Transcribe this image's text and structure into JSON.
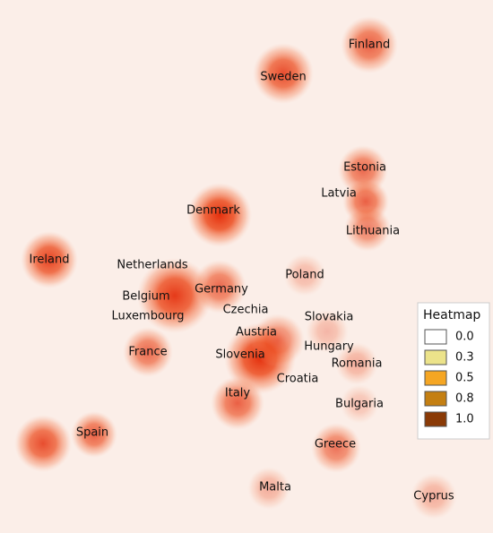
{
  "map": {
    "countries": [
      "Finland",
      "Sweden",
      "Estonia",
      "Latvia",
      "Lithuania",
      "Denmark",
      "Ireland",
      "Netherlands",
      "Poland",
      "Germany",
      "Belgium",
      "Czechia",
      "Slovakia",
      "Luxembourg",
      "Austria",
      "France",
      "Hungary",
      "Slovenia",
      "Romania",
      "Croatia",
      "Italy",
      "Bulgaria",
      "Spain",
      "Greece",
      "Malta",
      "Cyprus"
    ],
    "legend": {
      "title": "Heatmap",
      "items": [
        {
          "value": 0,
          "label": "0.0",
          "color": "#ffffff"
        },
        {
          "value": 0.3,
          "label": "0.3",
          "color": "#ece38a"
        },
        {
          "value": 0.5,
          "label": "0.5",
          "color": "#f5a623"
        },
        {
          "value": 0.8,
          "label": "0.8",
          "color": "#c47f12"
        },
        {
          "value": 1,
          "label": "1.0",
          "color": "#8a3a06"
        }
      ]
    }
  }
}
